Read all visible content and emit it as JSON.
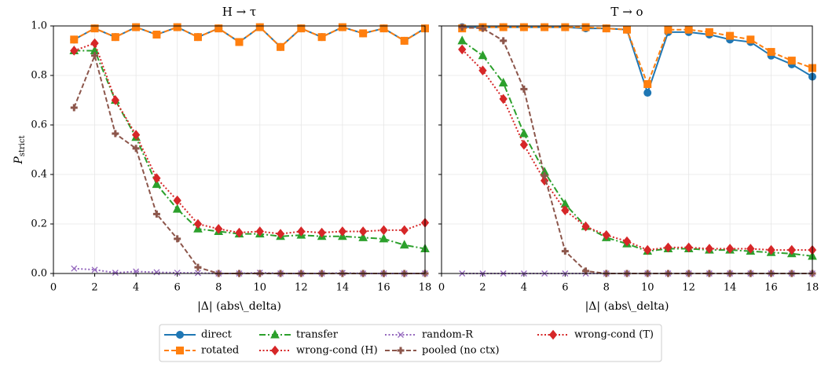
{
  "chart_data": [
    {
      "type": "line",
      "title": "H → τ",
      "xlabel": "|Δ| (abs\\_delta)",
      "ylabel": "P",
      "ylabel_subscript": "strict",
      "x": [
        1,
        2,
        3,
        4,
        5,
        6,
        7,
        8,
        9,
        10,
        11,
        12,
        13,
        14,
        15,
        16,
        17,
        18
      ],
      "xlim": [
        0,
        18
      ],
      "ylim": [
        0,
        1
      ],
      "xticks": [
        0,
        2,
        4,
        6,
        8,
        10,
        12,
        14,
        16,
        18
      ],
      "yticks": [
        {
          "value": 0,
          "label": "0.0"
        },
        {
          "value": 0.2,
          "label": "0.2"
        },
        {
          "value": 0.4,
          "label": "0.4"
        },
        {
          "value": 0.6,
          "label": "0.6"
        },
        {
          "value": 0.8,
          "label": "0.8"
        },
        {
          "value": 1,
          "label": "1.0"
        }
      ],
      "grid": true,
      "series": [
        {
          "name": "direct",
          "color": "#1f77b4",
          "marker": "circle",
          "dash": "solid",
          "values": [
            0.945,
            0.99,
            0.955,
            0.995,
            0.965,
            0.995,
            0.955,
            0.99,
            0.935,
            0.995,
            0.915,
            0.99,
            0.955,
            0.995,
            0.97,
            0.99,
            0.94,
            0.99
          ]
        },
        {
          "name": "rotated",
          "color": "#ff7f0e",
          "marker": "square",
          "dash": "dashed",
          "values": [
            0.945,
            0.99,
            0.955,
            0.995,
            0.965,
            0.995,
            0.955,
            0.99,
            0.935,
            0.995,
            0.915,
            0.99,
            0.955,
            0.995,
            0.97,
            0.99,
            0.94,
            0.99
          ]
        },
        {
          "name": "transfer",
          "color": "#2ca02c",
          "marker": "triangle",
          "dash": "dashdot",
          "values": [
            0.9,
            0.9,
            0.7,
            0.55,
            0.36,
            0.26,
            0.18,
            0.17,
            0.16,
            0.16,
            0.15,
            0.155,
            0.15,
            0.15,
            0.145,
            0.14,
            0.115,
            0.1
          ]
        },
        {
          "name": "wrong-cond (H)",
          "color": "#d62728",
          "marker": "diamond",
          "dash": "dotted",
          "values": [
            0.9,
            0.93,
            0.7,
            0.56,
            0.385,
            0.295,
            0.2,
            0.18,
            0.165,
            0.17,
            0.16,
            0.17,
            0.165,
            0.17,
            0.17,
            0.175,
            0.175,
            0.205
          ]
        },
        {
          "name": "random-R",
          "color": "#9467bd",
          "marker": "x",
          "dash": "dotted",
          "values": [
            0.02,
            0.015,
            0.003,
            0.008,
            0.005,
            0.003,
            0.002,
            0,
            0,
            0.003,
            0,
            0,
            0,
            0.002,
            0,
            0,
            0,
            0
          ]
        },
        {
          "name": "pooled (no ctx)",
          "color": "#8c564b",
          "marker": "plus",
          "dash": "dashed",
          "values": [
            0.67,
            0.88,
            0.565,
            0.505,
            0.24,
            0.14,
            0.025,
            0,
            0,
            0,
            0,
            0,
            0,
            0,
            0,
            0,
            0,
            0
          ]
        }
      ]
    },
    {
      "type": "line",
      "title": "T → o",
      "xlabel": "|Δ| (abs\\_delta)",
      "x": [
        1,
        2,
        3,
        4,
        5,
        6,
        7,
        8,
        9,
        10,
        11,
        12,
        13,
        14,
        15,
        16,
        17,
        18
      ],
      "xlim": [
        0,
        18
      ],
      "ylim": [
        0,
        1
      ],
      "xticks": [
        0,
        2,
        4,
        6,
        8,
        10,
        12,
        14,
        16,
        18
      ],
      "yticks": [
        0,
        0.2,
        0.4,
        0.6,
        0.8,
        1
      ],
      "grid": true,
      "series": [
        {
          "name": "direct",
          "color": "#1f77b4",
          "marker": "circle",
          "dash": "solid",
          "values": [
            0.995,
            0.995,
            0.995,
            0.995,
            0.995,
            0.995,
            0.99,
            0.99,
            0.985,
            0.73,
            0.975,
            0.975,
            0.965,
            0.945,
            0.935,
            0.88,
            0.845,
            0.795
          ]
        },
        {
          "name": "rotated",
          "color": "#ff7f0e",
          "marker": "square",
          "dash": "dashed",
          "values": [
            0.99,
            0.995,
            0.995,
            0.995,
            0.995,
            0.995,
            0.995,
            0.99,
            0.985,
            0.765,
            0.985,
            0.985,
            0.975,
            0.96,
            0.945,
            0.895,
            0.86,
            0.83
          ]
        },
        {
          "name": "transfer",
          "color": "#2ca02c",
          "marker": "triangle",
          "dash": "dashdot",
          "values": [
            0.94,
            0.88,
            0.77,
            0.565,
            0.41,
            0.28,
            0.19,
            0.145,
            0.12,
            0.09,
            0.1,
            0.1,
            0.095,
            0.095,
            0.09,
            0.085,
            0.08,
            0.07
          ]
        },
        {
          "name": "wrong-cond (T)",
          "color": "#d62728",
          "marker": "diamond",
          "dash": "dotted",
          "values": [
            0.905,
            0.82,
            0.705,
            0.52,
            0.375,
            0.255,
            0.19,
            0.155,
            0.13,
            0.095,
            0.105,
            0.105,
            0.1,
            0.1,
            0.1,
            0.095,
            0.095,
            0.095
          ]
        },
        {
          "name": "random-R",
          "color": "#9467bd",
          "marker": "x",
          "dash": "dotted",
          "values": [
            0,
            0,
            0,
            0,
            0,
            0,
            0,
            0,
            0,
            0,
            0,
            0,
            0,
            0,
            0,
            0,
            0,
            0
          ]
        },
        {
          "name": "pooled (no ctx)",
          "color": "#8c564b",
          "marker": "plus",
          "dash": "dashed",
          "values": [
            0.995,
            0.99,
            0.94,
            0.745,
            0.395,
            0.09,
            0.01,
            0,
            0,
            0,
            0,
            0,
            0,
            0,
            0,
            0,
            0,
            0
          ]
        }
      ]
    }
  ]
}
